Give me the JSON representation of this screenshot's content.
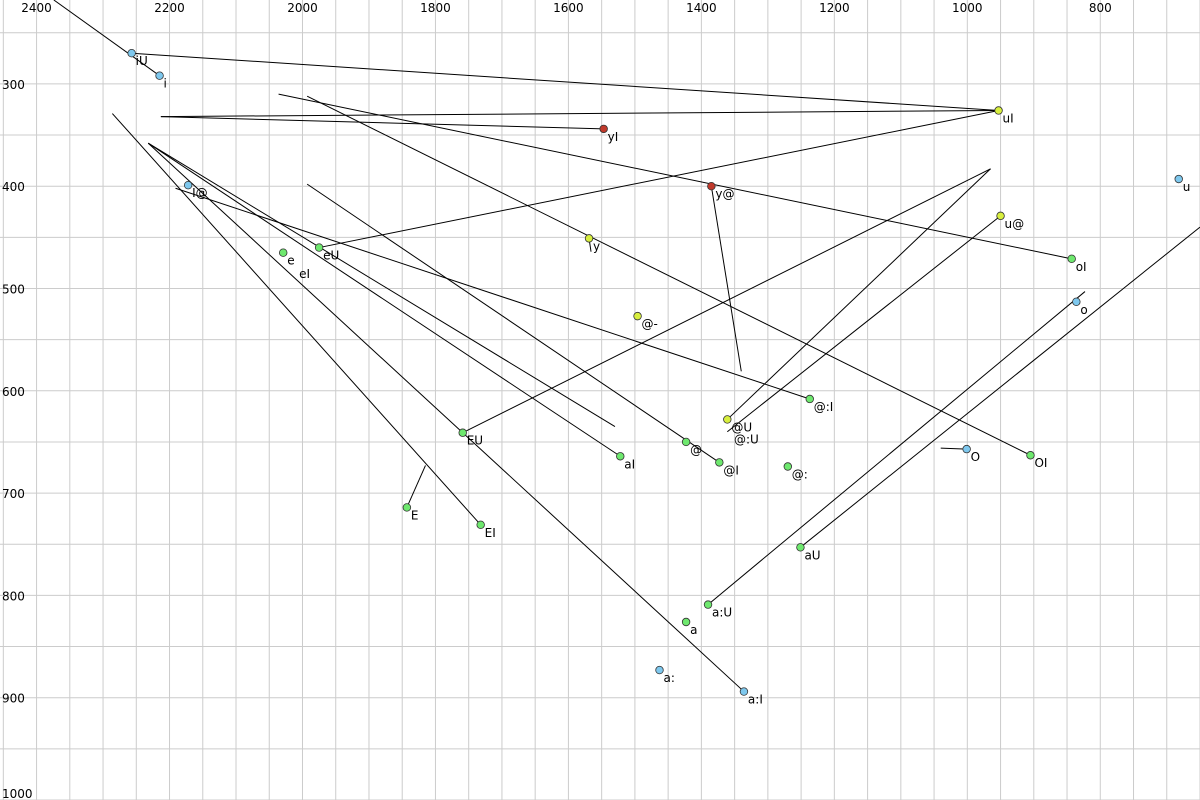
{
  "chart_data": {
    "type": "scatter",
    "title": "",
    "xlabel": "",
    "ylabel": "",
    "x_axis_inverted": true,
    "y_axis_inverted": true,
    "xlim": [
      2455,
      650
    ],
    "ylim": [
      218,
      1000
    ],
    "x_ticks": [
      {
        "value": 2400,
        "label": "2400"
      },
      {
        "value": 2200,
        "label": "2200"
      },
      {
        "value": 2000,
        "label": "2000"
      },
      {
        "value": 1800,
        "label": "1800"
      },
      {
        "value": 1600,
        "label": "1600"
      },
      {
        "value": 1400,
        "label": "1400"
      },
      {
        "value": 1200,
        "label": "1200"
      },
      {
        "value": 1000,
        "label": "1000"
      },
      {
        "value": 800,
        "label": "800"
      }
    ],
    "y_ticks": [
      {
        "value": 300,
        "label": "300"
      },
      {
        "value": 400,
        "label": "400"
      },
      {
        "value": 500,
        "label": "500"
      },
      {
        "value": 600,
        "label": "600"
      },
      {
        "value": 700,
        "label": "700"
      },
      {
        "value": 800,
        "label": "800"
      },
      {
        "value": 900,
        "label": "900"
      },
      {
        "value": 1000,
        "label": "1000"
      }
    ],
    "grid": true,
    "colors": {
      "grid": "#cccccc",
      "line": "#000000",
      "blue_point": "#7ec8ee",
      "green_point": "#6ee86e",
      "yellow_point": "#d8ef3e",
      "red_point": "#c0392b"
    },
    "points": [
      {
        "label": "iU",
        "f2": 2257,
        "f1": 270,
        "color": "#7ec8ee"
      },
      {
        "label": "i",
        "f2": 2215,
        "f1": 292,
        "color": "#7ec8ee"
      },
      {
        "label": "uI",
        "f2": 953,
        "f1": 326,
        "color": "#d8ef3e"
      },
      {
        "label": "yI",
        "f2": 1547,
        "f1": 344,
        "color": "#c0392b"
      },
      {
        "label": "y@",
        "f2": 1385,
        "f1": 400,
        "color": "#c0392b"
      },
      {
        "label": "u",
        "f2": 682,
        "f1": 393,
        "color": "#7ec8ee"
      },
      {
        "label": "I@",
        "f2": 2172,
        "f1": 399,
        "color": "#7ec8ee"
      },
      {
        "label": "u@",
        "f2": 950,
        "f1": 429,
        "color": "#d8ef3e"
      },
      {
        "label": "y",
        "f2": 1569,
        "f1": 451,
        "color": "#d8ef3e"
      },
      {
        "label": "e",
        "f2": 2029,
        "f1": 465,
        "color": "#6ee86e"
      },
      {
        "label": "eU",
        "f2": 1975,
        "f1": 460,
        "color": "#6ee86e"
      },
      {
        "label": "oI",
        "f2": 843,
        "f1": 471,
        "color": "#6ee86e"
      },
      {
        "label": "o",
        "f2": 836,
        "f1": 513,
        "color": "#7ec8ee"
      },
      {
        "label": "@-",
        "f2": 1496,
        "f1": 527,
        "color": "#d8ef3e"
      },
      {
        "label": "@:I",
        "f2": 1237,
        "f1": 608,
        "color": "#6ee86e"
      },
      {
        "label": "@U",
        "f2": 1361,
        "f1": 628,
        "color": "#d8ef3e"
      },
      {
        "label": "EU",
        "f2": 1759,
        "f1": 641,
        "color": "#6ee86e"
      },
      {
        "label": "@",
        "f2": 1423,
        "f1": 650,
        "color": "#6ee86e"
      },
      {
        "label": "O",
        "f2": 1001,
        "f1": 657,
        "color": "#7ec8ee"
      },
      {
        "label": "aI",
        "f2": 1522,
        "f1": 664,
        "color": "#6ee86e"
      },
      {
        "label": "OI",
        "f2": 905,
        "f1": 663,
        "color": "#6ee86e"
      },
      {
        "label": "@I",
        "f2": 1373,
        "f1": 670,
        "color": "#6ee86e"
      },
      {
        "label": "@:",
        "f2": 1270,
        "f1": 674,
        "color": "#6ee86e"
      },
      {
        "label": "E",
        "f2": 1843,
        "f1": 714,
        "color": "#6ee86e"
      },
      {
        "label": "EI",
        "f2": 1732,
        "f1": 731,
        "color": "#6ee86e"
      },
      {
        "label": "aU",
        "f2": 1251,
        "f1": 753,
        "color": "#6ee86e"
      },
      {
        "label": "a:U",
        "f2": 1390,
        "f1": 809,
        "color": "#6ee86e"
      },
      {
        "label": "a",
        "f2": 1423,
        "f1": 826,
        "color": "#6ee86e"
      },
      {
        "label": "a:",
        "f2": 1463,
        "f1": 873,
        "color": "#7ec8ee"
      },
      {
        "label": "a:I",
        "f2": 1336,
        "f1": 894,
        "color": "#7ec8ee"
      }
    ],
    "extra_labels": [
      {
        "label": "eI",
        "f2": 2011,
        "f1": 478
      },
      {
        "label": "@:U",
        "f2": 1357,
        "f1": 640
      }
    ],
    "trajectories": [
      {
        "from": [
          2374,
          218
        ],
        "to": [
          2215,
          292
        ]
      },
      {
        "from": [
          2257,
          270
        ],
        "to": [
          953,
          326
        ]
      },
      {
        "from": [
          953,
          326
        ],
        "to": [
          2213,
          332
        ]
      },
      {
        "from": [
          2213,
          332
        ],
        "to": [
          1547,
          344
        ]
      },
      {
        "from": [
          953,
          326
        ],
        "to": [
          1975,
          460
        ]
      },
      {
        "from": [
          1385,
          400
        ],
        "to": [
          1340,
          581
        ]
      },
      {
        "from": [
          2191,
          402
        ],
        "to": [
          1237,
          608
        ]
      },
      {
        "from": [
          2036,
          310
        ],
        "to": [
          843,
          471
        ]
      },
      {
        "from": [
          1993,
          312
        ],
        "to": [
          905,
          663
        ]
      },
      {
        "from": [
          2286,
          329
        ],
        "to": [
          1732,
          731
        ]
      },
      {
        "from": [
          2232,
          358
        ],
        "to": [
          1530,
          635
        ]
      },
      {
        "from": [
          2232,
          358
        ],
        "to": [
          1336,
          894
        ]
      },
      {
        "from": [
          2232,
          358
        ],
        "to": [
          1522,
          664
        ]
      },
      {
        "from": [
          1993,
          398
        ],
        "to": [
          1373,
          670
        ]
      },
      {
        "from": [
          965,
          383
        ],
        "to": [
          1759,
          641
        ]
      },
      {
        "from": [
          965,
          383
        ],
        "to": [
          1361,
          628
        ]
      },
      {
        "from": [
          950,
          429
        ],
        "to": [
          1361,
          640
        ]
      },
      {
        "from": [
          823,
          503
        ],
        "to": [
          1390,
          809
        ]
      },
      {
        "from": [
          650,
          440
        ],
        "to": [
          1251,
          753
        ]
      },
      {
        "from": [
          1843,
          714
        ],
        "to": [
          1815,
          673
        ]
      },
      {
        "from": [
          1040,
          656
        ],
        "to": [
          1001,
          657
        ]
      },
      {
        "from": [
          1569,
          451
        ],
        "to": [
          1566,
          464
        ]
      }
    ]
  }
}
